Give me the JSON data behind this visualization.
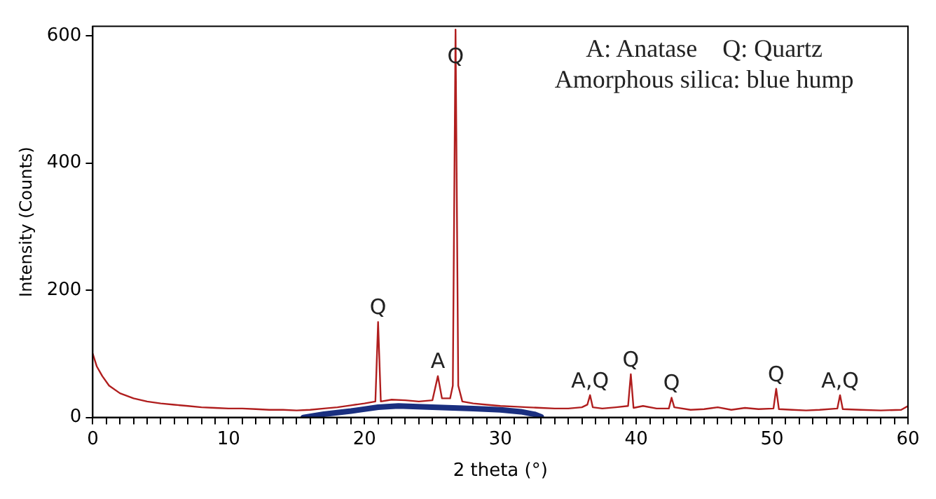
{
  "chart_data": {
    "type": "line",
    "xlabel": "2 theta (°)",
    "ylabel": "Intensity (Counts)",
    "xlim": [
      0,
      60
    ],
    "ylim": [
      0,
      615
    ],
    "xticks": [
      0,
      {
        "value": 1,
        "label": null
      },
      {
        "value": 2,
        "label": null
      },
      {
        "value": 3,
        "label": null
      },
      {
        "value": 4,
        "label": null
      },
      {
        "value": 5,
        "label": null
      },
      {
        "value": 6,
        "label": null
      },
      {
        "value": 7,
        "label": null
      },
      {
        "value": 8,
        "label": null
      },
      {
        "value": 9,
        "label": null
      },
      10,
      {
        "value": 11,
        "label": null
      },
      {
        "value": 12,
        "label": null
      },
      {
        "value": 13,
        "label": null
      },
      {
        "value": 14,
        "label": null
      },
      {
        "value": 15,
        "label": null
      },
      {
        "value": 16,
        "label": null
      },
      {
        "value": 17,
        "label": null
      },
      {
        "value": 18,
        "label": null
      },
      {
        "value": 19,
        "label": null
      },
      20,
      {
        "value": 21,
        "label": null
      },
      {
        "value": 22,
        "label": null
      },
      {
        "value": 23,
        "label": null
      },
      {
        "value": 24,
        "label": null
      },
      {
        "value": 25,
        "label": null
      },
      {
        "value": 26,
        "label": null
      },
      {
        "value": 27,
        "label": null
      },
      {
        "value": 28,
        "label": null
      },
      {
        "value": 29,
        "label": null
      },
      30,
      {
        "value": 31,
        "label": null
      },
      {
        "value": 32,
        "label": null
      },
      {
        "value": 33,
        "label": null
      },
      {
        "value": 34,
        "label": null
      },
      {
        "value": 35,
        "label": null
      },
      {
        "value": 36,
        "label": null
      },
      {
        "value": 37,
        "label": null
      },
      {
        "value": 38,
        "label": null
      },
      {
        "value": 39,
        "label": null
      },
      40,
      {
        "value": 41,
        "label": null
      },
      {
        "value": 42,
        "label": null
      },
      {
        "value": 43,
        "label": null
      },
      {
        "value": 44,
        "label": null
      },
      {
        "value": 45,
        "label": null
      },
      {
        "value": 46,
        "label": null
      },
      {
        "value": 47,
        "label": null
      },
      {
        "value": 48,
        "label": null
      },
      {
        "value": 49,
        "label": null
      },
      50,
      {
        "value": 51,
        "label": null
      },
      {
        "value": 52,
        "label": null
      },
      {
        "value": 53,
        "label": null
      },
      {
        "value": 54,
        "label": null
      },
      {
        "value": 55,
        "label": null
      },
      {
        "value": 56,
        "label": null
      },
      {
        "value": 57,
        "label": null
      },
      {
        "value": 58,
        "label": null
      },
      {
        "value": 59,
        "label": null
      },
      60
    ],
    "yticks": [
      0,
      200,
      400,
      600
    ],
    "grid": false,
    "legend": false,
    "marker": "none",
    "line_style": "solid",
    "series": [
      {
        "color": "#b01e1e",
        "x": [
          0,
          0.3,
          0.7,
          1.2,
          2,
          3,
          4,
          5,
          6,
          7,
          8,
          9,
          10,
          11,
          12,
          13,
          14,
          15,
          16,
          17,
          18,
          19,
          20,
          20.8,
          21.0,
          21.2,
          22,
          23,
          24,
          25,
          25.4,
          25.7,
          26.3,
          26.5,
          26.7,
          26.9,
          27.2,
          28,
          29,
          30,
          31,
          32,
          33,
          34,
          35,
          36,
          36.4,
          36.6,
          36.8,
          37.5,
          38.5,
          39.4,
          39.6,
          39.8,
          40.5,
          41.5,
          42.4,
          42.6,
          42.8,
          44,
          45,
          46,
          47,
          48,
          49,
          50.1,
          50.3,
          50.5,
          51.5,
          52.5,
          53.5,
          54.8,
          55.0,
          55.2,
          56.5,
          58,
          59.5,
          60
        ],
        "values": [
          100,
          80,
          65,
          50,
          38,
          30,
          25,
          22,
          20,
          18,
          16,
          15,
          14,
          14,
          13,
          12,
          12,
          11,
          12,
          14,
          16,
          19,
          22,
          25,
          150,
          25,
          28,
          27,
          25,
          27,
          65,
          30,
          30,
          50,
          610,
          50,
          25,
          22,
          20,
          18,
          17,
          16,
          15,
          14,
          14,
          16,
          20,
          35,
          16,
          14,
          16,
          18,
          68,
          15,
          18,
          14,
          14,
          31,
          16,
          12,
          13,
          16,
          12,
          15,
          13,
          14,
          45,
          13,
          12,
          11,
          12,
          14,
          35,
          13,
          12,
          11,
          12,
          18
        ]
      },
      {
        "color": "#1a2f80",
        "x": [
          15.5,
          17,
          19,
          21,
          22.5,
          25,
          28,
          30,
          31.5,
          32.5,
          33
        ],
        "values": [
          0,
          5,
          10,
          16,
          18,
          16,
          14,
          12,
          9,
          5,
          1
        ]
      }
    ],
    "annotations": [
      {
        "text": "Q",
        "x": 21.0,
        "y": 150
      },
      {
        "text": "A",
        "x": 25.4,
        "y": 65
      },
      {
        "text": "Q",
        "x": 26.7,
        "y": 610
      },
      {
        "text": "A,Q",
        "x": 36.6,
        "y": 35
      },
      {
        "text": "Q",
        "x": 39.6,
        "y": 68
      },
      {
        "text": "Q",
        "x": 42.6,
        "y": 31
      },
      {
        "text": "Q",
        "x": 50.3,
        "y": 45
      },
      {
        "text": "A,Q",
        "x": 55.0,
        "y": 35
      },
      "A: Anatase    Q: Quartz",
      "Amorphous silica: blue hump"
    ]
  }
}
